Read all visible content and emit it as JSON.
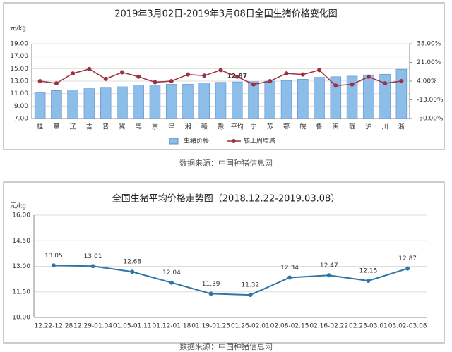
{
  "chart_data": [
    {
      "type": "combo",
      "title": "2019年3月02日-2019年3月08日全国生猪价格变化图",
      "y_label": "元/kg",
      "source": "数据来源：中国种猪信息网",
      "categories": [
        "桂",
        "黑",
        "辽",
        "吉",
        "晋",
        "冀",
        "粤",
        "京",
        "津",
        "湘",
        "赣",
        "豫",
        "平均",
        "宁",
        "苏",
        "鄂",
        "皖",
        "鲁",
        "闽",
        "陇",
        "沪",
        "川",
        "浙"
      ],
      "series": [
        {
          "name": "生猪价格",
          "type": "bar",
          "color": "#8dbde9",
          "values": [
            11.2,
            11.5,
            11.6,
            11.8,
            11.9,
            12.1,
            12.4,
            12.4,
            12.5,
            12.5,
            12.7,
            12.8,
            12.87,
            12.9,
            13.0,
            13.1,
            13.3,
            13.6,
            13.7,
            13.8,
            14.0,
            14.1,
            14.9
          ],
          "value_labels": [
            null,
            null,
            null,
            null,
            null,
            null,
            null,
            null,
            null,
            null,
            null,
            null,
            "12.87",
            null,
            null,
            null,
            null,
            null,
            null,
            null,
            null,
            null,
            null
          ]
        },
        {
          "name": "较上周增减",
          "type": "line",
          "axis": "y2",
          "color": "#9e3044",
          "values": [
            4,
            2,
            11,
            15,
            6,
            12,
            8,
            3,
            4,
            10,
            9,
            14,
            8,
            1,
            4,
            11,
            10,
            14,
            0,
            1,
            8,
            2,
            4
          ]
        }
      ],
      "ylim": [
        7,
        19
      ],
      "yticks": [
        {
          "value": 7,
          "label": "7.00"
        },
        {
          "value": 9,
          "label": "9.00"
        },
        {
          "value": 11,
          "label": "11.00"
        },
        {
          "value": 13,
          "label": "13.00"
        },
        {
          "value": 15,
          "label": "15.00"
        },
        {
          "value": 17,
          "label": "17.00"
        },
        {
          "value": 19,
          "label": "19.00"
        }
      ],
      "y2lim": [
        -30,
        38
      ],
      "y2ticks": [
        {
          "value": 38,
          "label": "38.00%"
        },
        {
          "value": 21,
          "label": "21.00%"
        },
        {
          "value": 4,
          "label": "4.00%"
        },
        {
          "value": -13,
          "label": "-13.00%"
        },
        {
          "value": -30,
          "label": "-30.00%"
        }
      ],
      "grid": true
    },
    {
      "type": "line",
      "title": "全国生猪平均价格走势图（2018.12.22-2019.03.08）",
      "y_label": "元/kg",
      "source": "数据来源：中国种猪信息网",
      "categories": [
        "12.22-12.28",
        "12.29-01.04",
        "01.05-01.11",
        "01.12-01.18",
        "01.19-01.25",
        "01.26-02.01",
        "02.08-02.15",
        "02.16-02.22",
        "02.23-03.01",
        "03.02-03.08"
      ],
      "values": [
        13.05,
        13.01,
        12.68,
        12.04,
        11.39,
        11.32,
        12.34,
        12.47,
        12.15,
        12.87
      ],
      "color": "#2e76a8",
      "ylim": [
        10,
        16
      ],
      "yticks": [
        {
          "value": 10,
          "label": "10.00"
        },
        {
          "value": 11.5,
          "label": "11.50"
        },
        {
          "value": 13,
          "label": "13.00"
        },
        {
          "value": 14.5,
          "label": "14.50"
        },
        {
          "value": 16,
          "label": "16.00"
        }
      ],
      "grid": true
    }
  ]
}
